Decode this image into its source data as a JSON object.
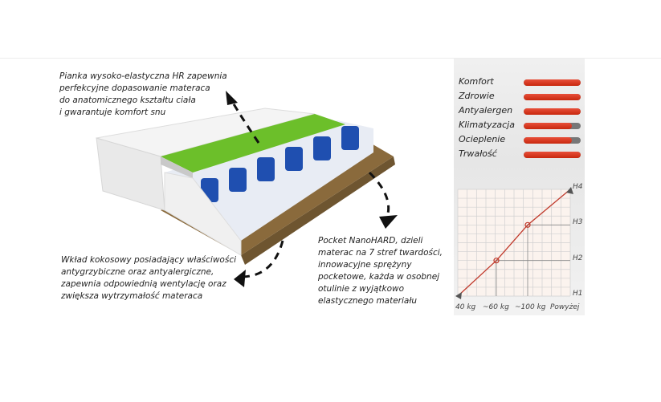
{
  "notes": {
    "top_left": [
      "Pianka wysoko-elastyczna HR zapewnia",
      "perfekcyjne dopasowanie materaca",
      "do anatomicznego kształtu ciała",
      "i gwarantuje komfort snu"
    ],
    "bottom_left": [
      "Wkład kokosowy posiadający właściwości",
      "antygrzybiczne oraz antyalergiczne,",
      "zapewnia odpowiednią wentylację oraz",
      "zwiększa wytrzymałość materaca"
    ],
    "right": [
      "Pocket NanoHARD, dzieli",
      "materac na 7 stref twardości,",
      "innowacyjne sprężyny",
      "pocketowe, każda w osobnej",
      "otulinie z wyjątkowo",
      "elastycznego materiału"
    ]
  },
  "features": [
    {
      "label": "Komfort",
      "level": 1.0
    },
    {
      "label": "Zdrowie",
      "level": 1.0
    },
    {
      "label": "Antyalergen",
      "level": 1.0
    },
    {
      "label": "Klimatyzacja",
      "level": 0.85
    },
    {
      "label": "Ocieplenie",
      "level": 0.85
    },
    {
      "label": "Trwałość",
      "level": 1.0
    }
  ],
  "colors": {
    "bar": "#d5361c",
    "bar_track": "#777777",
    "line": "#c0392b",
    "foam": "#6cbf2a",
    "spring": "#1f4fb0",
    "coconut": "#8a6a3c"
  },
  "chart_data": {
    "type": "line",
    "x_ticks": [
      "40 kg",
      "~60 kg",
      "~100 kg",
      "Powyżej"
    ],
    "y_ticks": [
      "H1",
      "H2",
      "H3",
      "H4"
    ],
    "points": [
      {
        "x": "40 kg",
        "y": "H1"
      },
      {
        "x": "~60 kg",
        "y": "H2"
      },
      {
        "x": "~100 kg",
        "y": "H3"
      },
      {
        "x": "Powyżej",
        "y": "H4"
      }
    ],
    "grid": true
  }
}
